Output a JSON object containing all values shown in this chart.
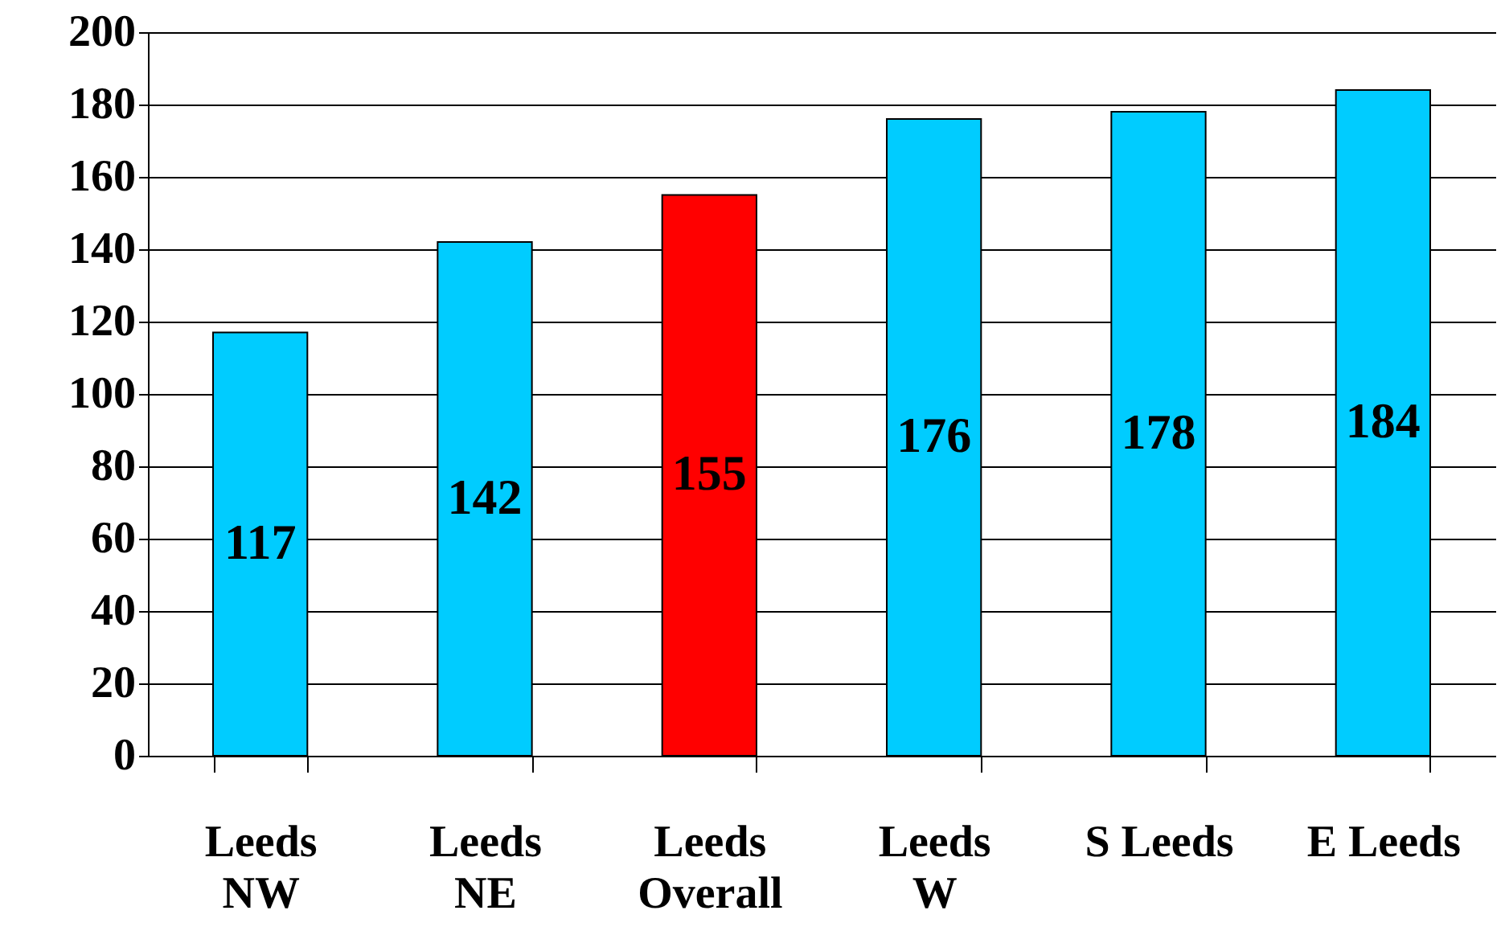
{
  "chart_data": {
    "type": "bar",
    "categories": [
      "Leeds\nNW",
      "Leeds\nNE",
      "Leeds\nOverall",
      "Leeds\nW",
      "S Leeds",
      "E Leeds"
    ],
    "values": [
      117,
      142,
      155,
      176,
      178,
      184
    ],
    "colors": [
      "#00ccff",
      "#00ccff",
      "#ff0000",
      "#00ccff",
      "#00ccff",
      "#00ccff"
    ],
    "ylim": [
      0,
      200
    ],
    "yticks": [
      0,
      20,
      40,
      60,
      80,
      100,
      120,
      140,
      160,
      180,
      200
    ],
    "grid": "y",
    "data_labels": true
  }
}
